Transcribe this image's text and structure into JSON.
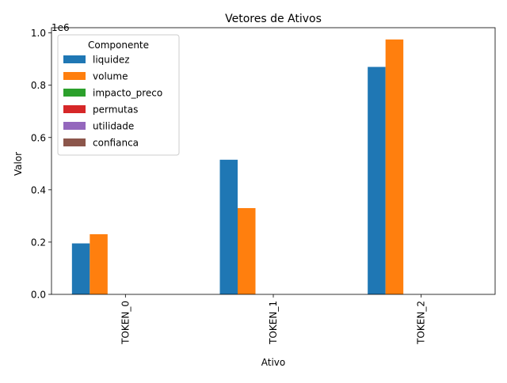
{
  "chart_data": {
    "type": "bar",
    "title": "Vetores de Ativos",
    "xlabel": "Ativo",
    "ylabel": "Valor",
    "y_scale_label": "1e6",
    "y_scale_factor": 1000000,
    "ylim": [
      0,
      1020000
    ],
    "y_ticks": [
      0,
      200000,
      400000,
      600000,
      800000,
      1000000
    ],
    "y_tick_labels": [
      "0.0",
      "0.2",
      "0.4",
      "0.6",
      "0.8",
      "1.0"
    ],
    "categories": [
      "TOKEN_0",
      "TOKEN_1",
      "TOKEN_2"
    ],
    "grid": false,
    "legend": {
      "title": "Componente",
      "placement": "top-left"
    },
    "series": [
      {
        "name": "liquidez",
        "color": "#1f77b4",
        "values": [
          195000,
          515000,
          870000
        ]
      },
      {
        "name": "volume",
        "color": "#ff7f0e",
        "values": [
          230000,
          330000,
          975000
        ]
      },
      {
        "name": "impacto_preco",
        "color": "#2ca02c",
        "values": [
          0,
          0,
          0
        ]
      },
      {
        "name": "permutas",
        "color": "#d62728",
        "values": [
          0,
          0,
          0
        ]
      },
      {
        "name": "utilidade",
        "color": "#9467bd",
        "values": [
          0,
          0,
          0
        ]
      },
      {
        "name": "confianca",
        "color": "#8c564b",
        "values": [
          0,
          0,
          0
        ]
      }
    ]
  }
}
